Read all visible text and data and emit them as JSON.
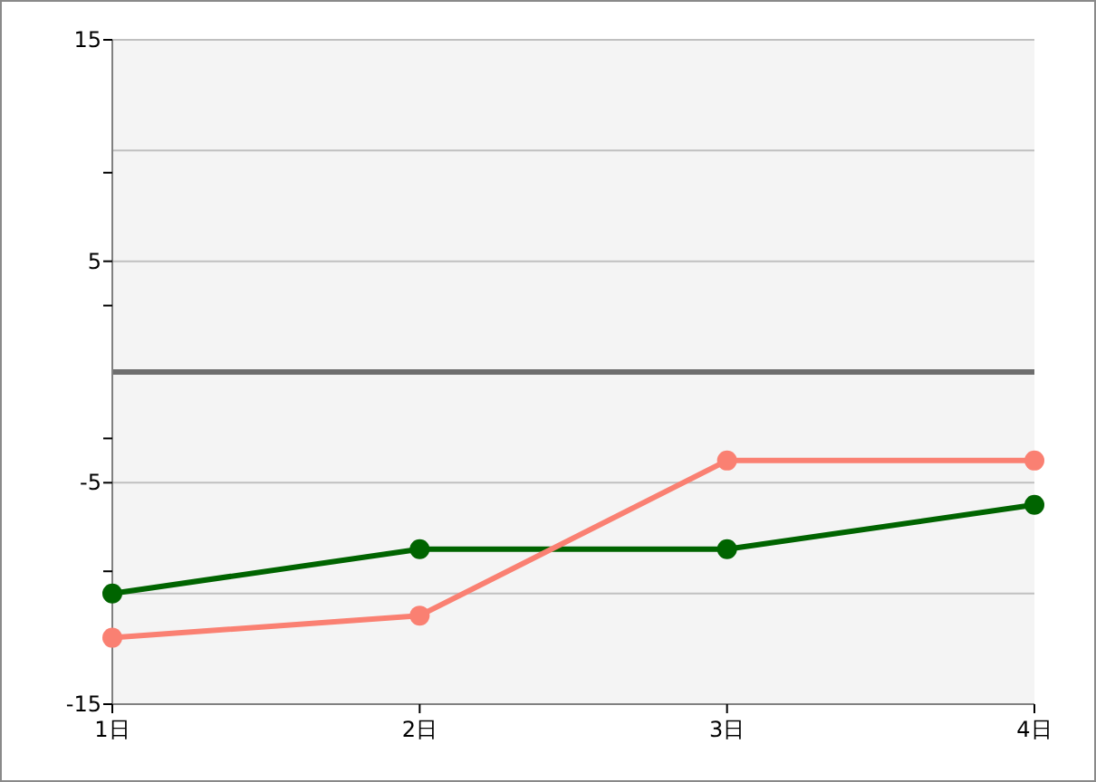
{
  "chart_data": {
    "type": "line",
    "categories": [
      "1日",
      "2日",
      "3日",
      "4日"
    ],
    "series": [
      {
        "color": "#006400",
        "values": [
          -10,
          -8,
          -8,
          -6
        ]
      },
      {
        "color": "#fa8072",
        "values": [
          -12,
          -11,
          -4,
          -4
        ]
      }
    ],
    "ylim": [
      -15,
      15
    ],
    "yticks": [
      15,
      {
        "value": 9,
        "label": null
      },
      5,
      {
        "value": 3,
        "label": null
      },
      {
        "value": -3,
        "label": null
      },
      -5,
      {
        "value": -9,
        "label": null
      },
      -15
    ],
    "grid": "y",
    "marker": "circle",
    "line_style": "solid",
    "ref_lines": [
      {
        "axis": "y",
        "value": 0,
        "color": "#6e6e6e"
      },
      {
        "axis": "y",
        "value": 10,
        "color": "#c0c0c0"
      },
      {
        "axis": "y",
        "value": -10,
        "color": "#c0c0c0"
      }
    ]
  }
}
